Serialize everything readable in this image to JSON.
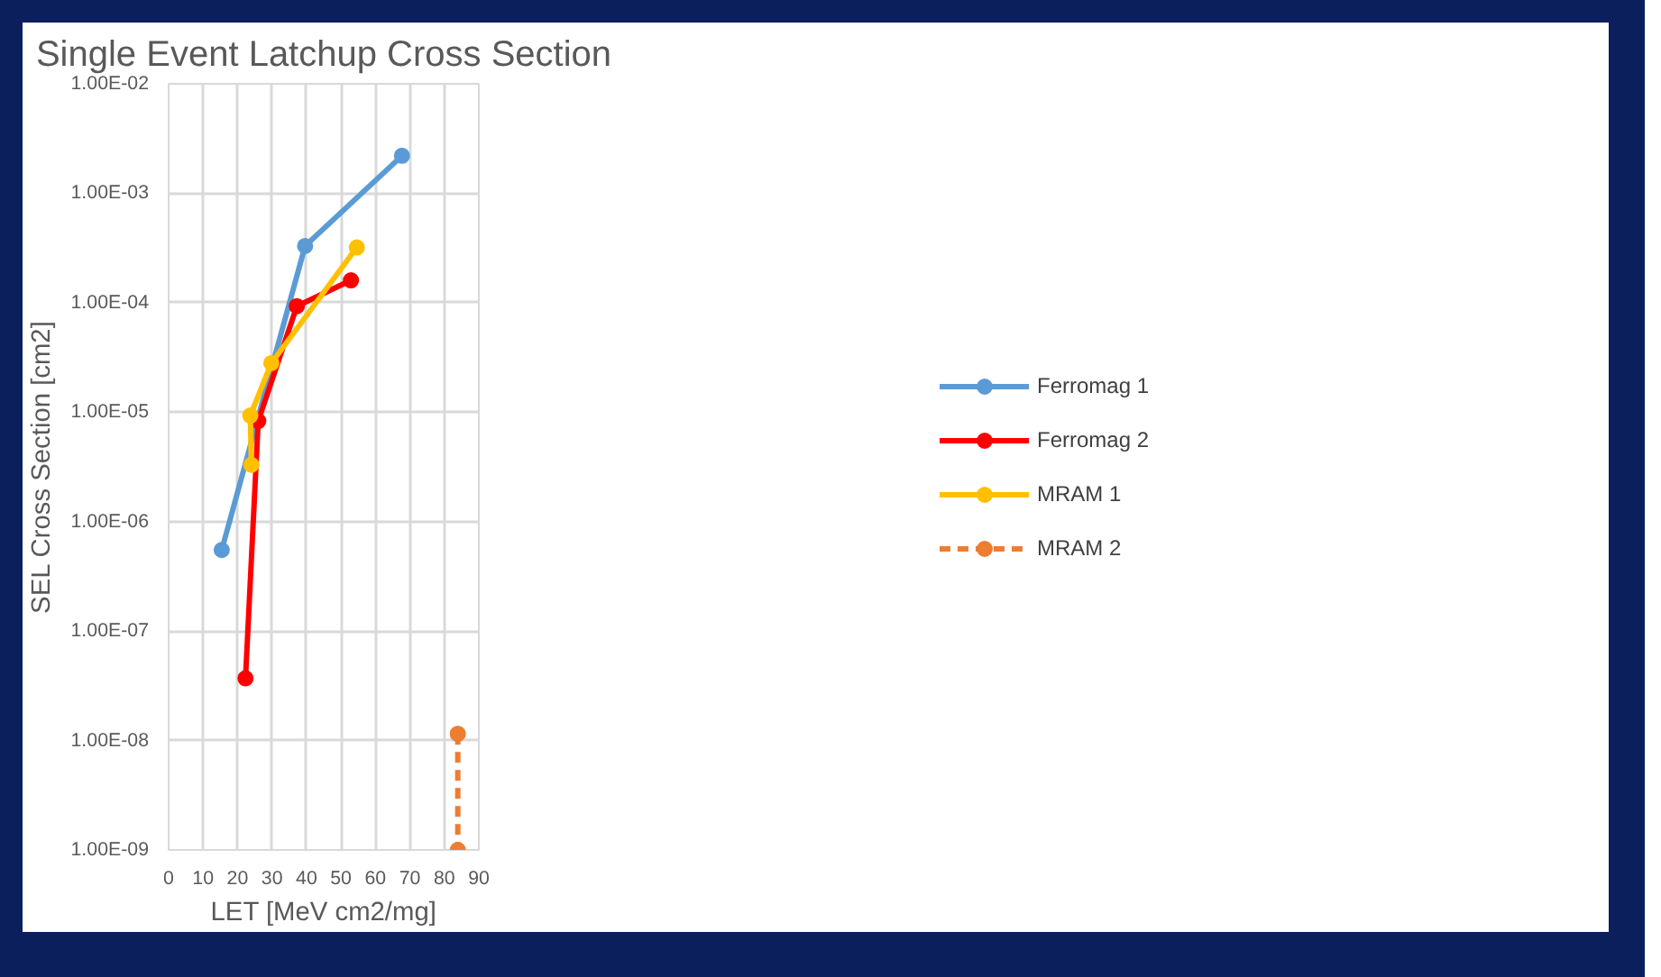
{
  "chart_data": {
    "type": "line",
    "title": "Single Event Latchup Cross Section",
    "xlabel": "LET [MeV cm2/mg]",
    "ylabel": "SEL Cross Section [cm2]",
    "log": "y",
    "xlim": [
      0,
      90
    ],
    "xticks": [
      0,
      10,
      20,
      30,
      40,
      50,
      60,
      70,
      80,
      90
    ],
    "ylim": [
      1e-09,
      0.01
    ],
    "yticks": [
      {
        "value": 1e-09,
        "label": "1.00E-09"
      },
      {
        "value": 1e-08,
        "label": "1.00E-08"
      },
      {
        "value": 1e-07,
        "label": "1.00E-07"
      },
      {
        "value": 1e-06,
        "label": "1.00E-06"
      },
      {
        "value": 1e-05,
        "label": "1.00E-05"
      },
      {
        "value": 0.0001,
        "label": "1.00E-04"
      },
      {
        "value": 0.001,
        "label": "1.00E-03"
      },
      {
        "value": 0.01,
        "label": "1.00E-02"
      }
    ],
    "grid": true,
    "legend": "right",
    "marker": "circle",
    "series": [
      {
        "name": "Ferromag 1",
        "color": "#5b9bd5",
        "x": [
          15.4,
          39.6,
          67.7
        ],
        "values": [
          5.5e-07,
          0.00033,
          0.0022
        ]
      },
      {
        "name": "Ferromag 2",
        "color": "#ff0000",
        "x": [
          22.3,
          26,
          37.2,
          52.9
        ],
        "values": [
          3.7e-08,
          8.3e-06,
          9.3e-05,
          0.00016
        ]
      },
      {
        "name": "MRAM 1",
        "color": "#ffc000",
        "x": [
          24,
          23.7,
          29.8,
          54.6
        ],
        "values": [
          3.3e-06,
          9.3e-06,
          2.8e-05,
          0.00032
        ]
      },
      {
        "name": "MRAM 2",
        "color": "#ed7d31",
        "line_style": "dashed",
        "x": [
          83.9,
          83.9
        ],
        "values": [
          1.15e-08,
          1e-09
        ]
      }
    ]
  }
}
